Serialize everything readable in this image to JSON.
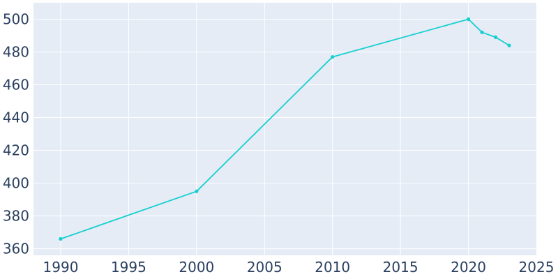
{
  "chart_data": {
    "type": "line",
    "title": "",
    "xlabel": "",
    "ylabel": "",
    "xlim": [
      1988,
      2025
    ],
    "ylim": [
      356,
      510
    ],
    "x_ticks": [
      1990,
      1995,
      2000,
      2005,
      2010,
      2015,
      2020,
      2025
    ],
    "y_ticks": [
      360,
      380,
      400,
      420,
      440,
      460,
      480,
      500
    ],
    "grid": true,
    "legend": "none",
    "colors": {
      "plot_bg": "#e5ecf6",
      "grid": "#ffffff",
      "line": "#17cfcf",
      "tick_text": "#2a3f5f"
    },
    "series": [
      {
        "x": [
          1990,
          2000,
          2010,
          2020,
          2021,
          2022,
          2023
        ],
        "y": [
          366,
          395,
          477,
          500,
          492,
          489,
          484
        ]
      }
    ]
  }
}
